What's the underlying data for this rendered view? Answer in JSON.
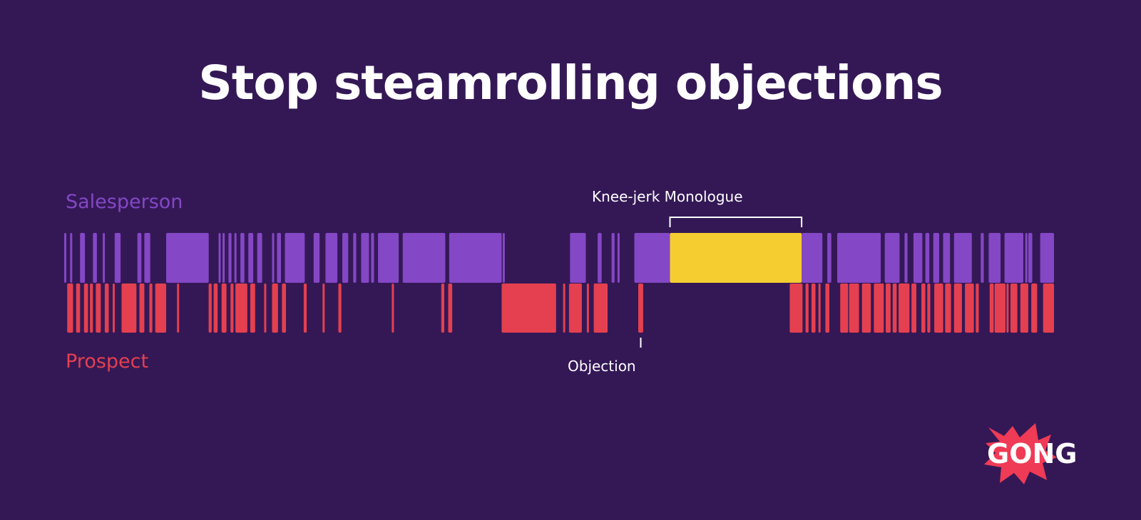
{
  "title": "Stop steamrolling objections",
  "lanes": {
    "salesperson": {
      "label": "Salesperson",
      "color": "#8447c5"
    },
    "prospect": {
      "label": "Prospect",
      "color": "#e4404f"
    }
  },
  "annotations": {
    "monologue": {
      "label": "Knee-jerk Monologue",
      "color": "#f6cd31"
    },
    "objection": {
      "label": "Objection"
    }
  },
  "chart_data": {
    "type": "bar",
    "x_range": [
      0,
      100
    ],
    "salesperson_segments": [
      [
        0.0,
        0.2
      ],
      [
        0.6,
        0.8
      ],
      [
        1.6,
        2.1
      ],
      [
        2.9,
        3.3
      ],
      [
        3.9,
        4.1
      ],
      [
        5.1,
        5.7
      ],
      [
        7.4,
        7.8
      ],
      [
        8.1,
        8.7
      ],
      [
        10.3,
        14.6
      ],
      [
        15.6,
        15.8
      ],
      [
        16.0,
        16.2
      ],
      [
        16.6,
        16.9
      ],
      [
        17.2,
        17.4
      ],
      [
        17.8,
        18.2
      ],
      [
        18.6,
        19.1
      ],
      [
        19.5,
        20.0
      ],
      [
        21.0,
        21.2
      ],
      [
        21.5,
        21.9
      ],
      [
        22.3,
        24.3
      ],
      [
        25.2,
        25.8
      ],
      [
        26.4,
        27.6
      ],
      [
        28.1,
        28.7
      ],
      [
        29.2,
        29.5
      ],
      [
        30.0,
        30.8
      ],
      [
        31.0,
        31.3
      ],
      [
        31.7,
        33.8
      ],
      [
        34.2,
        38.5
      ],
      [
        38.9,
        44.2
      ],
      [
        44.3,
        44.4
      ],
      [
        51.1,
        52.7
      ],
      [
        53.9,
        54.3
      ],
      [
        55.3,
        55.6
      ],
      [
        55.9,
        56.1
      ],
      [
        57.6,
        61.2
      ],
      [
        74.5,
        76.6
      ],
      [
        77.1,
        77.5
      ],
      [
        78.1,
        82.5
      ],
      [
        82.9,
        84.4
      ],
      [
        84.9,
        85.2
      ],
      [
        85.8,
        86.7
      ],
      [
        87.0,
        87.4
      ],
      [
        87.8,
        88.4
      ],
      [
        88.8,
        89.5
      ],
      [
        89.9,
        91.7
      ],
      [
        92.6,
        92.9
      ],
      [
        93.4,
        94.6
      ],
      [
        95.0,
        96.9
      ],
      [
        97.1,
        97.2
      ],
      [
        97.4,
        97.8
      ],
      [
        98.6,
        100.0
      ]
    ],
    "monologue_segment": [
      61.2,
      74.5
    ],
    "prospect_segments": [
      [
        0.3,
        0.9
      ],
      [
        1.2,
        1.6
      ],
      [
        2.0,
        2.4
      ],
      [
        2.6,
        2.9
      ],
      [
        3.2,
        3.7
      ],
      [
        4.1,
        4.5
      ],
      [
        4.9,
        5.0
      ],
      [
        5.8,
        7.3
      ],
      [
        7.6,
        8.1
      ],
      [
        8.6,
        8.9
      ],
      [
        9.2,
        10.3
      ],
      [
        11.4,
        11.6
      ],
      [
        14.6,
        14.9
      ],
      [
        15.1,
        15.5
      ],
      [
        15.9,
        16.4
      ],
      [
        16.8,
        17.1
      ],
      [
        17.3,
        18.5
      ],
      [
        18.8,
        19.3
      ],
      [
        20.2,
        20.4
      ],
      [
        21.0,
        21.6
      ],
      [
        22.0,
        22.4
      ],
      [
        24.2,
        24.5
      ],
      [
        26.1,
        26.2
      ],
      [
        27.7,
        28.0
      ],
      [
        33.1,
        33.3
      ],
      [
        38.1,
        38.4
      ],
      [
        38.8,
        39.2
      ],
      [
        44.2,
        49.7
      ],
      [
        50.4,
        50.6
      ],
      [
        51.0,
        52.3
      ],
      [
        52.8,
        53.0
      ],
      [
        53.5,
        54.9
      ],
      [
        58.0,
        58.5
      ],
      [
        73.3,
        74.6
      ],
      [
        74.9,
        75.2
      ],
      [
        75.5,
        75.9
      ],
      [
        76.2,
        76.3
      ],
      [
        76.9,
        77.3
      ],
      [
        78.4,
        79.2
      ],
      [
        79.3,
        80.3
      ],
      [
        80.6,
        81.5
      ],
      [
        81.8,
        82.8
      ],
      [
        83.0,
        83.5
      ],
      [
        83.7,
        84.1
      ],
      [
        84.3,
        85.4
      ],
      [
        85.6,
        86.1
      ],
      [
        86.6,
        87.0
      ],
      [
        87.2,
        87.5
      ],
      [
        87.9,
        88.8
      ],
      [
        89.0,
        89.6
      ],
      [
        89.9,
        90.7
      ],
      [
        91.0,
        91.9
      ],
      [
        92.1,
        92.4
      ],
      [
        93.5,
        93.9
      ],
      [
        94.0,
        95.1
      ],
      [
        95.2,
        95.4
      ],
      [
        95.6,
        96.3
      ],
      [
        96.6,
        97.4
      ],
      [
        97.7,
        98.3
      ],
      [
        98.9,
        100.0
      ]
    ]
  }
}
